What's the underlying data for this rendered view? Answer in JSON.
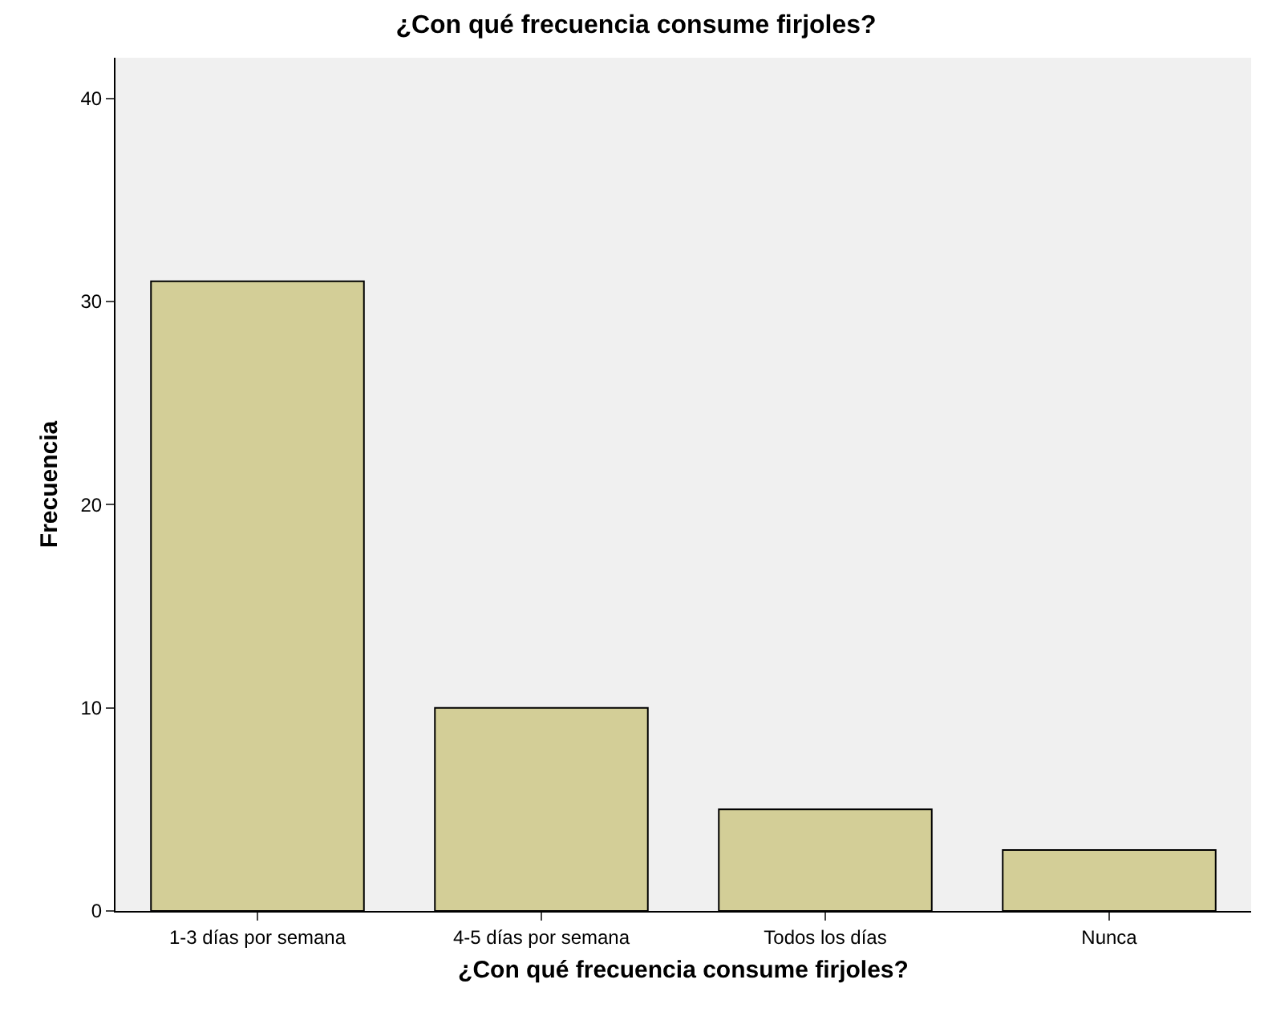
{
  "chart_data": {
    "type": "bar",
    "title": "¿Con qué frecuencia consume firjoles?",
    "xlabel": "¿Con qué frecuencia consume firjoles?",
    "ylabel": "Frecuencia",
    "categories": [
      "1-3 días por semana",
      "4-5 días por semana",
      "Todos los días",
      "Nunca"
    ],
    "values": [
      31,
      10,
      5,
      3
    ],
    "color": "#d3ce97",
    "ylim": [
      0,
      42
    ],
    "yticks": [
      0,
      10,
      20,
      30,
      40
    ],
    "grid": false,
    "legend": false
  }
}
